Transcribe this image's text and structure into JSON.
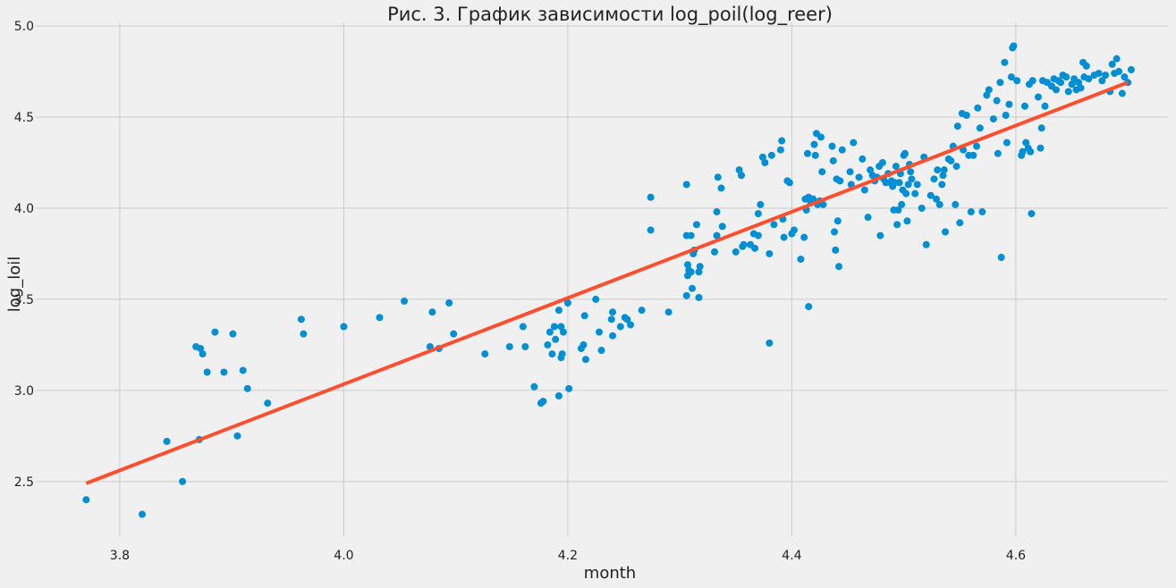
{
  "chart_data": {
    "type": "scatter",
    "title": "Рис. 3. График зависимости log_poil(log_reer)",
    "xlabel": "month",
    "ylabel": "log_loil",
    "xlim": [
      3.725,
      4.735
    ],
    "ylim": [
      2.2,
      5.02
    ],
    "xticks": [
      "3.8",
      "4.0",
      "4.2",
      "4.4",
      "4.6"
    ],
    "xtick_values": [
      3.8,
      4.0,
      4.2,
      4.4,
      4.6
    ],
    "yticks": [
      "2.5",
      "3.0",
      "3.5",
      "4.0",
      "4.5",
      "5.0"
    ],
    "ytick_values": [
      2.5,
      3.0,
      3.5,
      4.0,
      4.5,
      5.0
    ],
    "grid": true,
    "colors": {
      "points": "#008fd5",
      "line": "#fc4f30",
      "background": "#f0f0f0",
      "grid": "#cbcbcb"
    },
    "line": {
      "x": [
        3.77,
        4.7
      ],
      "y": [
        2.49,
        4.69
      ]
    },
    "points": [
      [
        3.77,
        2.4
      ],
      [
        3.82,
        2.32
      ],
      [
        3.842,
        2.72
      ],
      [
        3.856,
        2.5
      ],
      [
        3.868,
        3.24
      ],
      [
        3.872,
        3.23
      ],
      [
        3.874,
        3.2
      ],
      [
        3.871,
        2.73
      ],
      [
        3.878,
        3.1
      ],
      [
        3.885,
        3.32
      ],
      [
        3.893,
        3.1
      ],
      [
        3.901,
        3.31
      ],
      [
        3.905,
        2.75
      ],
      [
        3.91,
        3.11
      ],
      [
        3.914,
        3.01
      ],
      [
        3.932,
        2.93
      ],
      [
        3.962,
        3.39
      ],
      [
        3.964,
        3.31
      ],
      [
        4.0,
        3.35
      ],
      [
        4.032,
        3.4
      ],
      [
        4.054,
        3.49
      ],
      [
        4.077,
        3.24
      ],
      [
        4.079,
        3.43
      ],
      [
        4.085,
        3.23
      ],
      [
        4.094,
        3.48
      ],
      [
        4.098,
        3.31
      ],
      [
        4.126,
        3.2
      ],
      [
        4.148,
        3.24
      ],
      [
        4.16,
        3.35
      ],
      [
        4.162,
        3.24
      ],
      [
        4.17,
        3.02
      ],
      [
        4.176,
        2.93
      ],
      [
        4.178,
        2.94
      ],
      [
        4.182,
        3.25
      ],
      [
        4.184,
        3.32
      ],
      [
        4.186,
        3.2
      ],
      [
        4.188,
        3.35
      ],
      [
        4.189,
        3.28
      ],
      [
        4.192,
        3.44
      ],
      [
        4.194,
        3.35
      ],
      [
        4.192,
        2.97
      ],
      [
        4.195,
        3.2
      ],
      [
        4.196,
        3.32
      ],
      [
        4.194,
        3.18
      ],
      [
        4.2,
        3.48
      ],
      [
        4.201,
        3.01
      ],
      [
        4.212,
        3.23
      ],
      [
        4.214,
        3.25
      ],
      [
        4.215,
        3.41
      ],
      [
        4.216,
        3.17
      ],
      [
        4.225,
        3.5
      ],
      [
        4.228,
        3.32
      ],
      [
        4.23,
        3.22
      ],
      [
        4.24,
        3.43
      ],
      [
        4.239,
        3.39
      ],
      [
        4.24,
        3.3
      ],
      [
        4.247,
        3.35
      ],
      [
        4.251,
        3.4
      ],
      [
        4.253,
        3.39
      ],
      [
        4.256,
        3.36
      ],
      [
        4.266,
        3.44
      ],
      [
        4.274,
        4.06
      ],
      [
        4.274,
        3.88
      ],
      [
        4.29,
        3.43
      ],
      [
        4.306,
        4.13
      ],
      [
        4.306,
        3.85
      ],
      [
        4.31,
        3.85
      ],
      [
        4.307,
        3.69
      ],
      [
        4.308,
        3.66
      ],
      [
        4.31,
        3.65
      ],
      [
        4.307,
        3.63
      ],
      [
        4.306,
        3.52
      ],
      [
        4.311,
        3.56
      ],
      [
        4.312,
        3.75
      ],
      [
        4.313,
        3.77
      ],
      [
        4.315,
        3.91
      ],
      [
        4.317,
        3.65
      ],
      [
        4.318,
        3.68
      ],
      [
        4.317,
        3.51
      ],
      [
        4.331,
        3.76
      ],
      [
        4.334,
        4.17
      ],
      [
        4.333,
        3.98
      ],
      [
        4.333,
        3.85
      ],
      [
        4.337,
        4.11
      ],
      [
        4.338,
        3.9
      ],
      [
        4.35,
        3.76
      ],
      [
        4.353,
        4.21
      ],
      [
        4.355,
        4.18
      ],
      [
        4.356,
        3.79
      ],
      [
        4.357,
        3.8
      ],
      [
        4.363,
        3.8
      ],
      [
        4.366,
        3.86
      ],
      [
        4.367,
        3.78
      ],
      [
        4.37,
        3.97
      ],
      [
        4.37,
        3.85
      ],
      [
        4.372,
        4.02
      ],
      [
        4.374,
        4.28
      ],
      [
        4.376,
        4.25
      ],
      [
        4.38,
        3.75
      ],
      [
        4.382,
        4.29
      ],
      [
        4.384,
        3.91
      ],
      [
        4.38,
        3.26
      ],
      [
        4.39,
        4.32
      ],
      [
        4.391,
        4.37
      ],
      [
        4.392,
        3.94
      ],
      [
        4.393,
        3.84
      ],
      [
        4.396,
        4.15
      ],
      [
        4.398,
        4.14
      ],
      [
        4.4,
        3.86
      ],
      [
        4.402,
        3.88
      ],
      [
        4.408,
        3.72
      ],
      [
        4.411,
        3.84
      ],
      [
        4.412,
        4.05
      ],
      [
        4.413,
        3.99
      ],
      [
        4.414,
        4.3
      ],
      [
        4.415,
        4.06
      ],
      [
        4.415,
        3.46
      ],
      [
        4.417,
        4.03
      ],
      [
        4.418,
        4.04
      ],
      [
        4.419,
        4.05
      ],
      [
        4.42,
        4.35
      ],
      [
        4.421,
        4.29
      ],
      [
        4.422,
        4.41
      ],
      [
        4.423,
        4.02
      ],
      [
        4.425,
        4.04
      ],
      [
        4.426,
        4.39
      ],
      [
        4.427,
        4.2
      ],
      [
        4.428,
        4.02
      ],
      [
        4.436,
        4.34
      ],
      [
        4.437,
        4.26
      ],
      [
        4.438,
        3.87
      ],
      [
        4.439,
        3.77
      ],
      [
        4.44,
        4.16
      ],
      [
        4.441,
        3.93
      ],
      [
        4.442,
        3.68
      ],
      [
        4.443,
        4.15
      ],
      [
        4.445,
        4.32
      ],
      [
        4.452,
        4.2
      ],
      [
        4.453,
        4.13
      ],
      [
        4.455,
        4.36
      ],
      [
        4.46,
        4.17
      ],
      [
        4.463,
        4.27
      ],
      [
        4.465,
        4.1
      ],
      [
        4.468,
        3.95
      ],
      [
        4.47,
        4.21
      ],
      [
        4.472,
        4.18
      ],
      [
        4.474,
        4.15
      ],
      [
        4.476,
        4.17
      ],
      [
        4.478,
        4.23
      ],
      [
        4.479,
        3.85
      ],
      [
        4.481,
        4.25
      ],
      [
        4.482,
        4.16
      ],
      [
        4.484,
        4.14
      ],
      [
        4.486,
        4.19
      ],
      [
        4.488,
        4.14
      ],
      [
        4.489,
        4.15
      ],
      [
        4.49,
        4.12
      ],
      [
        4.491,
        3.99
      ],
      [
        4.492,
        4.14
      ],
      [
        4.493,
        4.23
      ],
      [
        4.494,
        3.91
      ],
      [
        4.495,
        3.99
      ],
      [
        4.496,
        4.14
      ],
      [
        4.497,
        4.19
      ],
      [
        4.498,
        4.02
      ],
      [
        4.499,
        4.1
      ],
      [
        4.5,
        4.29
      ],
      [
        4.501,
        4.3
      ],
      [
        4.502,
        4.08
      ],
      [
        4.503,
        3.93
      ],
      [
        4.504,
        4.13
      ],
      [
        4.505,
        4.24
      ],
      [
        4.506,
        4.2
      ],
      [
        4.507,
        4.16
      ],
      [
        4.51,
        4.08
      ],
      [
        4.512,
        4.13
      ],
      [
        4.516,
        4.0
      ],
      [
        4.518,
        4.28
      ],
      [
        4.52,
        3.8
      ],
      [
        4.524,
        4.07
      ],
      [
        4.527,
        4.16
      ],
      [
        4.529,
        4.05
      ],
      [
        4.53,
        4.21
      ],
      [
        4.532,
        4.02
      ],
      [
        4.534,
        4.13
      ],
      [
        4.535,
        4.18
      ],
      [
        4.536,
        4.21
      ],
      [
        4.537,
        3.87
      ],
      [
        4.54,
        4.27
      ],
      [
        4.542,
        4.26
      ],
      [
        4.544,
        4.34
      ],
      [
        4.546,
        4.02
      ],
      [
        4.547,
        4.23
      ],
      [
        4.548,
        4.45
      ],
      [
        4.55,
        3.92
      ],
      [
        4.552,
        4.52
      ],
      [
        4.553,
        4.32
      ],
      [
        4.556,
        4.51
      ],
      [
        4.558,
        4.29
      ],
      [
        4.56,
        3.98
      ],
      [
        4.562,
        4.29
      ],
      [
        4.565,
        4.34
      ],
      [
        4.566,
        4.55
      ],
      [
        4.568,
        4.44
      ],
      [
        4.57,
        3.98
      ],
      [
        4.574,
        4.62
      ],
      [
        4.576,
        4.65
      ],
      [
        4.58,
        4.49
      ],
      [
        4.583,
        4.59
      ],
      [
        4.584,
        4.3
      ],
      [
        4.586,
        4.69
      ],
      [
        4.587,
        3.73
      ],
      [
        4.59,
        4.8
      ],
      [
        4.591,
        4.51
      ],
      [
        4.592,
        4.36
      ],
      [
        4.594,
        4.57
      ],
      [
        4.596,
        4.72
      ],
      [
        4.597,
        4.88
      ],
      [
        4.598,
        4.89
      ],
      [
        4.601,
        4.7
      ],
      [
        4.605,
        4.29
      ],
      [
        4.606,
        4.31
      ],
      [
        4.608,
        4.56
      ],
      [
        4.609,
        4.36
      ],
      [
        4.611,
        4.33
      ],
      [
        4.612,
        4.68
      ],
      [
        4.613,
        4.31
      ],
      [
        4.614,
        3.97
      ],
      [
        4.615,
        4.7
      ],
      [
        4.62,
        4.61
      ],
      [
        4.622,
        4.33
      ],
      [
        4.623,
        4.44
      ],
      [
        4.624,
        4.7
      ],
      [
        4.626,
        4.56
      ],
      [
        4.628,
        4.69
      ],
      [
        4.632,
        4.67
      ],
      [
        4.634,
        4.71
      ],
      [
        4.636,
        4.65
      ],
      [
        4.638,
        4.7
      ],
      [
        4.64,
        4.69
      ],
      [
        4.642,
        4.73
      ],
      [
        4.645,
        4.72
      ],
      [
        4.647,
        4.64
      ],
      [
        4.65,
        4.68
      ],
      [
        4.652,
        4.71
      ],
      [
        4.654,
        4.65
      ],
      [
        4.656,
        4.69
      ],
      [
        4.658,
        4.66
      ],
      [
        4.66,
        4.8
      ],
      [
        4.661,
        4.72
      ],
      [
        4.663,
        4.78
      ],
      [
        4.665,
        4.71
      ],
      [
        4.67,
        4.73
      ],
      [
        4.674,
        4.74
      ],
      [
        4.677,
        4.7
      ],
      [
        4.68,
        4.73
      ],
      [
        4.684,
        4.64
      ],
      [
        4.686,
        4.79
      ],
      [
        4.688,
        4.74
      ],
      [
        4.69,
        4.82
      ],
      [
        4.692,
        4.75
      ],
      [
        4.695,
        4.63
      ],
      [
        4.697,
        4.72
      ],
      [
        4.7,
        4.69
      ],
      [
        4.703,
        4.76
      ]
    ]
  }
}
